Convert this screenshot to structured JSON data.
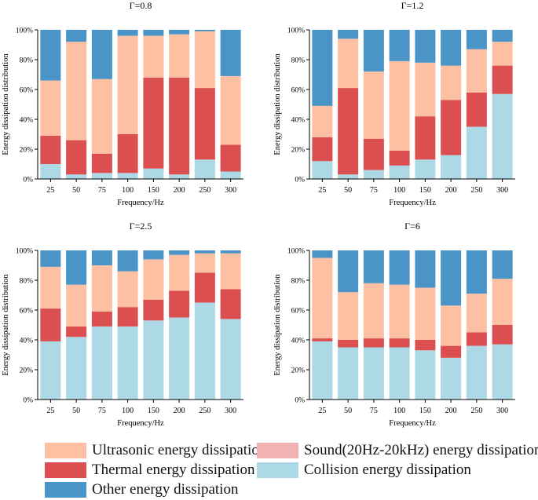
{
  "colors": {
    "ultrasonic": "#fdc0a2",
    "sound": "#f1b2b3",
    "thermal": "#dc4f50",
    "collision": "#add8e6",
    "other": "#4b94c8"
  },
  "legend": {
    "ultrasonic": "Ultrasonic energy dissipation",
    "sound": "Sound(20Hz-20kHz) energy dissipation",
    "thermal": "Thermal energy dissipation",
    "collision": "Collision energy dissipation",
    "other": "Other energy dissipation"
  },
  "chart_data": [
    {
      "type": "bar",
      "stacked": true,
      "title": "Γ=0.8",
      "xlabel": "Frequency/Hz",
      "ylabel": "Energy dissipation distribution",
      "ylim": [
        0,
        100
      ],
      "yticks": [
        "0%",
        "20%",
        "40%",
        "60%",
        "80%",
        "100%"
      ],
      "categories": [
        "25",
        "50",
        "75",
        "100",
        "150",
        "200",
        "250",
        "300"
      ],
      "series": [
        {
          "name": "Collision energy dissipation",
          "key": "collision",
          "values": [
            10,
            3,
            4,
            4,
            7,
            3,
            13,
            5
          ]
        },
        {
          "name": "Sound(20Hz-20kHz) energy dissipation",
          "key": "sound",
          "values": [
            0,
            0,
            0,
            0,
            0,
            0,
            0,
            0
          ]
        },
        {
          "name": "Thermal energy dissipation",
          "key": "thermal",
          "values": [
            19,
            23,
            13,
            26,
            61,
            65,
            48,
            18
          ]
        },
        {
          "name": "Ultrasonic energy dissipation",
          "key": "ultrasonic",
          "values": [
            37,
            66,
            50,
            66,
            28,
            29,
            38,
            46
          ]
        },
        {
          "name": "Other energy dissipation",
          "key": "other",
          "values": [
            34,
            8,
            33,
            4,
            4,
            3,
            1,
            31
          ]
        }
      ]
    },
    {
      "type": "bar",
      "stacked": true,
      "title": "Γ=1.2",
      "xlabel": "Frequency/Hz",
      "ylabel": "Energy dissipation distribution",
      "ylim": [
        0,
        100
      ],
      "yticks": [
        "0%",
        "20%",
        "40%",
        "60%",
        "80%",
        "100%"
      ],
      "categories": [
        "25",
        "50",
        "75",
        "100",
        "150",
        "200",
        "250",
        "300"
      ],
      "series": [
        {
          "name": "Collision energy dissipation",
          "key": "collision",
          "values": [
            12,
            3,
            6,
            9,
            13,
            16,
            35,
            57
          ]
        },
        {
          "name": "Sound(20Hz-20kHz) energy dissipation",
          "key": "sound",
          "values": [
            0,
            0,
            0,
            0,
            0,
            0,
            0,
            0
          ]
        },
        {
          "name": "Thermal energy dissipation",
          "key": "thermal",
          "values": [
            16,
            58,
            21,
            10,
            29,
            37,
            23,
            19
          ]
        },
        {
          "name": "Ultrasonic energy dissipation",
          "key": "ultrasonic",
          "values": [
            21,
            33,
            45,
            60,
            36,
            23,
            29,
            16
          ]
        },
        {
          "name": "Other energy dissipation",
          "key": "other",
          "values": [
            51,
            6,
            28,
            21,
            22,
            24,
            13,
            8
          ]
        }
      ]
    },
    {
      "type": "bar",
      "stacked": true,
      "title": "Γ=2.5",
      "xlabel": "Frequency/Hz",
      "ylabel": "Energy dissipation distribution",
      "ylim": [
        0,
        100
      ],
      "yticks": [
        "0%",
        "20%",
        "40%",
        "60%",
        "80%",
        "100%"
      ],
      "categories": [
        "25",
        "50",
        "75",
        "100",
        "150",
        "200",
        "250",
        "300"
      ],
      "series": [
        {
          "name": "Collision energy dissipation",
          "key": "collision",
          "values": [
            39,
            42,
            49,
            49,
            53,
            55,
            65,
            54
          ]
        },
        {
          "name": "Sound(20Hz-20kHz) energy dissipation",
          "key": "sound",
          "values": [
            0,
            0,
            0,
            0,
            0,
            0,
            0,
            0
          ]
        },
        {
          "name": "Thermal energy dissipation",
          "key": "thermal",
          "values": [
            22,
            7,
            10,
            13,
            14,
            18,
            20,
            20
          ]
        },
        {
          "name": "Ultrasonic energy dissipation",
          "key": "ultrasonic",
          "values": [
            28,
            28,
            31,
            24,
            27,
            24,
            13,
            24
          ]
        },
        {
          "name": "Other energy dissipation",
          "key": "other",
          "values": [
            11,
            23,
            10,
            14,
            6,
            3,
            2,
            2
          ]
        }
      ]
    },
    {
      "type": "bar",
      "stacked": true,
      "title": "Γ=6",
      "xlabel": "Frequency/Hz",
      "ylabel": "Energy dissipation distribution",
      "ylim": [
        0,
        100
      ],
      "yticks": [
        "0%",
        "20%",
        "40%",
        "60%",
        "80%",
        "100%"
      ],
      "categories": [
        "25",
        "50",
        "75",
        "100",
        "150",
        "200",
        "250",
        "300"
      ],
      "series": [
        {
          "name": "Collision energy dissipation",
          "key": "collision",
          "values": [
            39,
            35,
            35,
            35,
            33,
            28,
            36,
            37
          ]
        },
        {
          "name": "Sound(20Hz-20kHz) energy dissipation",
          "key": "sound",
          "values": [
            0,
            0,
            0,
            0,
            0,
            0,
            0,
            0
          ]
        },
        {
          "name": "Thermal energy dissipation",
          "key": "thermal",
          "values": [
            2,
            5,
            6,
            6,
            7,
            8,
            9,
            13
          ]
        },
        {
          "name": "Ultrasonic energy dissipation",
          "key": "ultrasonic",
          "values": [
            54,
            32,
            37,
            36,
            35,
            27,
            26,
            31
          ]
        },
        {
          "name": "Other energy dissipation",
          "key": "other",
          "values": [
            5,
            28,
            22,
            23,
            25,
            37,
            29,
            19
          ]
        }
      ]
    }
  ]
}
